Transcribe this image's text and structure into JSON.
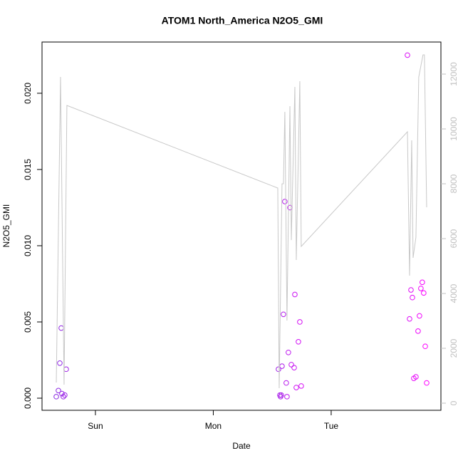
{
  "chart_data": {
    "type": "scatter",
    "title": "ATOM1 North_America N2O5_GMI",
    "x_label": "Date",
    "y_label": "N2O5_GMI",
    "xlim": [
      -0.453,
      2.931
    ],
    "xticks": [
      {
        "value": 0,
        "label": "Sun"
      },
      {
        "value": 1,
        "label": "Mon"
      },
      {
        "value": 2,
        "label": "Tue"
      }
    ],
    "ylim": [
      -0.000794,
      0.02336
    ],
    "yticks": [
      {
        "value": 0,
        "label": "0.000"
      },
      {
        "value": 0.005,
        "label": "0.005"
      },
      {
        "value": 0.01,
        "label": "0.010"
      },
      {
        "value": 0.015,
        "label": "0.015"
      },
      {
        "value": 0.02,
        "label": "0.020"
      }
    ],
    "y2lim": [
      -260,
      13169
    ],
    "y2ticks": [
      0,
      2000,
      4000,
      6000,
      8000,
      10000,
      12000
    ],
    "y2_tick_color": "#c0c0c0",
    "series": [
      {
        "type": "scatter",
        "colors": [
          "#8a2be2",
          "#ff00ff"
        ],
        "x": [
          -0.332,
          -0.314,
          -0.302,
          -0.29,
          -0.284,
          -0.272,
          -0.26,
          -0.248,
          1.553,
          1.565,
          1.571,
          1.577,
          1.583,
          1.595,
          1.607,
          1.619,
          1.625,
          1.637,
          1.65,
          1.662,
          1.686,
          1.692,
          1.704,
          1.722,
          1.734,
          1.746,
          2.647,
          2.665,
          2.677,
          2.689,
          2.701,
          2.719,
          2.737,
          2.749,
          2.761,
          2.773,
          2.785,
          2.798,
          2.81
        ],
        "values": [
          0.0001,
          0.0005,
          0.0023,
          0.0046,
          0.0003,
          0.0001,
          0.0002,
          0.0019,
          0.0019,
          0.0002,
          0.0001,
          0.0002,
          0.0021,
          0.0055,
          0.0129,
          0.001,
          0.0001,
          0.003,
          0.0125,
          0.0022,
          0.002,
          0.0068,
          0.0007,
          0.0037,
          0.005,
          0.0008,
          0.0225,
          0.0052,
          0.0071,
          0.0066,
          0.0013,
          0.0014,
          0.0044,
          0.0054,
          0.0072,
          0.0076,
          0.0069,
          0.0034,
          0.001
        ]
      },
      {
        "type": "line",
        "axis": "y2",
        "color": "#c8c8c8",
        "x": [
          -0.332,
          -0.296,
          -0.266,
          -0.242,
          1.547,
          1.559,
          1.583,
          1.595,
          1.607,
          1.625,
          1.65,
          1.662,
          1.692,
          1.704,
          1.734,
          1.746,
          2.647,
          2.665,
          2.683,
          2.695,
          2.719,
          2.743,
          2.779,
          2.791,
          2.81
        ],
        "values": [
          753,
          11896,
          675,
          10857,
          7844,
          545,
          8000,
          8000,
          10623,
          3013,
          10831,
          5948,
          11532,
          5221,
          11740,
          5714,
          9896,
          4649,
          9584,
          5299,
          6052,
          11896,
          12701,
          12701,
          7143
        ]
      }
    ]
  }
}
